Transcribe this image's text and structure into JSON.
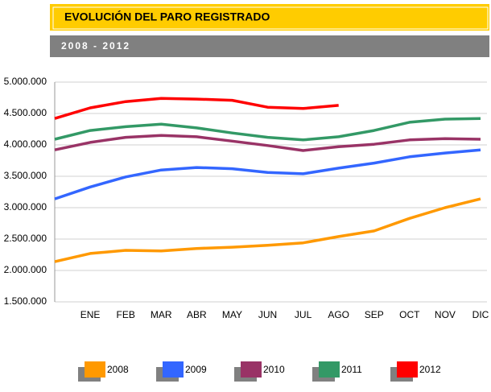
{
  "chart_data": {
    "type": "line",
    "title": "EVOLUCIÓN DEL PARO REGISTRADO",
    "subtitle": "2008 - 2012",
    "categories": [
      null,
      "ENE",
      "FEB",
      "MAR",
      "ABR",
      "MAY",
      "JUN",
      "JUL",
      "AGO",
      "SEP",
      "OCT",
      "NOV",
      "DIC"
    ],
    "series": [
      {
        "name": "2008",
        "color": "#ff9900",
        "values": [
          2140000,
          2270000,
          2320000,
          2310000,
          2350000,
          2370000,
          2400000,
          2440000,
          2540000,
          2630000,
          2830000,
          3000000,
          3140000
        ]
      },
      {
        "name": "2009",
        "color": "#3366ff",
        "values": [
          3140000,
          3330000,
          3490000,
          3600000,
          3640000,
          3620000,
          3560000,
          3540000,
          3630000,
          3710000,
          3810000,
          3870000,
          3920000
        ]
      },
      {
        "name": "2010",
        "color": "#993366",
        "values": [
          3920000,
          4040000,
          4120000,
          4150000,
          4130000,
          4060000,
          3990000,
          3910000,
          3970000,
          4010000,
          4080000,
          4100000,
          4090000
        ]
      },
      {
        "name": "2011",
        "color": "#339966",
        "values": [
          4090000,
          4230000,
          4290000,
          4330000,
          4270000,
          4190000,
          4120000,
          4080000,
          4130000,
          4230000,
          4360000,
          4410000,
          4420000
        ]
      },
      {
        "name": "2012",
        "color": "#ff0000",
        "values": [
          4420000,
          4590000,
          4690000,
          4740000,
          4730000,
          4710000,
          4600000,
          4580000,
          4630000,
          null,
          null,
          null,
          null
        ]
      }
    ],
    "ylim": [
      1500000,
      5000000
    ],
    "yticks": [
      {
        "value": 1500000,
        "label": "1.500.000"
      },
      {
        "value": 2000000,
        "label": "2.000.000"
      },
      {
        "value": 2500000,
        "label": "2.500.000"
      },
      {
        "value": 3000000,
        "label": "3.000.000"
      },
      {
        "value": 3500000,
        "label": "3.500.000"
      },
      {
        "value": 4000000,
        "label": "4.000.000"
      },
      {
        "value": 4500000,
        "label": "4.500.000"
      },
      {
        "value": 5000000,
        "label": "5.000.000"
      }
    ],
    "grid": true
  }
}
